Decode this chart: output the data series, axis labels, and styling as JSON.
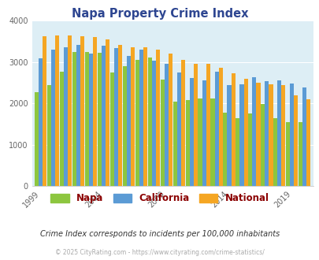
{
  "title": "Napa Property Crime Index",
  "years": [
    1999,
    2000,
    2001,
    2002,
    2003,
    2004,
    2005,
    2006,
    2007,
    2008,
    2009,
    2010,
    2011,
    2012,
    2013,
    2014,
    2015,
    2016,
    2017,
    2018,
    2019,
    2020
  ],
  "napa": [
    2280,
    2450,
    2770,
    3250,
    3240,
    3220,
    2750,
    2900,
    3060,
    3110,
    2580,
    2050,
    2080,
    2110,
    2110,
    1780,
    1640,
    1760,
    1990,
    1650,
    1550,
    1550
  ],
  "california": [
    3100,
    3300,
    3350,
    3420,
    3200,
    3400,
    3340,
    3150,
    3300,
    3030,
    2960,
    2740,
    2620,
    2560,
    2770,
    2450,
    2470,
    2630,
    2540,
    2560,
    2490,
    2380
  ],
  "national": [
    3620,
    3650,
    3650,
    3620,
    3610,
    3550,
    3420,
    3360,
    3350,
    3300,
    3210,
    3060,
    2960,
    2950,
    2870,
    2720,
    2600,
    2500,
    2460,
    2450,
    2200,
    2100
  ],
  "napa_color": "#8dc63f",
  "california_color": "#5b9bd5",
  "national_color": "#f5a623",
  "bg_color": "#ddeef5",
  "title_color": "#2e4691",
  "legend_label_color": "#8b0000",
  "subtitle": "Crime Index corresponds to incidents per 100,000 inhabitants",
  "footer": "© 2025 CityRating.com - https://www.cityrating.com/crime-statistics/",
  "ylim": [
    0,
    4000
  ],
  "yticks": [
    0,
    1000,
    2000,
    3000,
    4000
  ],
  "tick_years": [
    1999,
    2004,
    2009,
    2014,
    2019
  ]
}
